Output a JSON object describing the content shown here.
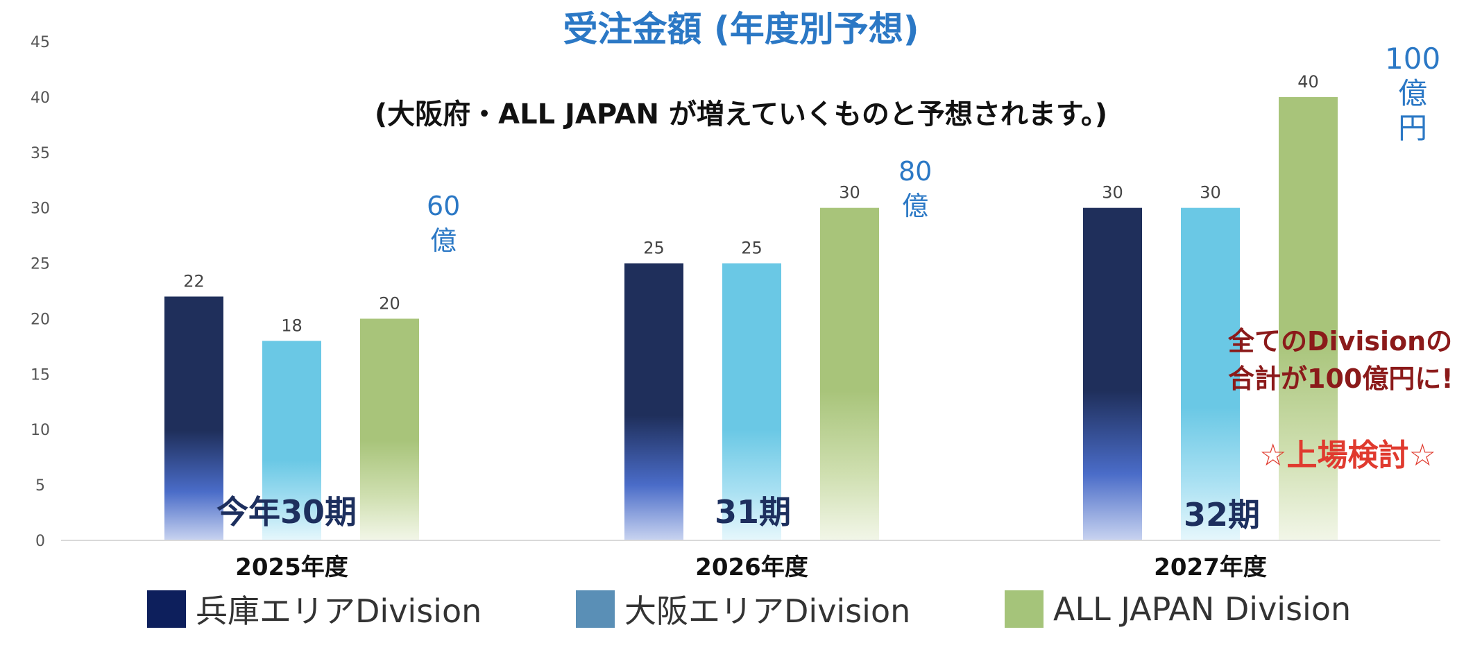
{
  "chart_data": {
    "type": "bar",
    "title": "受注金額 (年度別予想)",
    "subtitle": "(大阪府・ALL JAPAN が増えていくものと予想されます。)",
    "categories": [
      "2025年度",
      "2026年度",
      "2027年度"
    ],
    "series": [
      {
        "name": "兵庫エリアDivision",
        "values": [
          22,
          25,
          30
        ],
        "color": "#1f2f5b",
        "legend_color": "#0d1f5c"
      },
      {
        "name": "大阪エリアDivision",
        "values": [
          18,
          25,
          30
        ],
        "color": "#6ac8e5",
        "legend_color": "#5a8fb6"
      },
      {
        "name": "ALL JAPAN Division",
        "values": [
          20,
          30,
          40
        ],
        "color": "#a8c47a",
        "legend_color": "#a5c47a"
      }
    ],
    "data_labels": [
      [
        "22",
        "18",
        "20"
      ],
      [
        "25",
        "25",
        "30"
      ],
      [
        "30",
        "30",
        "40"
      ]
    ],
    "ylim": [
      0,
      45
    ],
    "yticks": [
      0,
      5,
      10,
      15,
      20,
      25,
      30,
      35,
      40,
      45
    ],
    "grid": false,
    "legend_position": "bottom"
  },
  "annotations": {
    "totals": [
      {
        "number": "60",
        "unit": "億"
      },
      {
        "number": "80",
        "unit": "億"
      },
      {
        "number": "100",
        "unit": "億",
        "unit2": "円"
      }
    ],
    "periods": [
      "今年30期",
      "31期",
      "32期"
    ],
    "note_line1": "全てのDivisionの",
    "note_line2": "合計が100億円に!",
    "star_text": "☆上場検討☆"
  }
}
